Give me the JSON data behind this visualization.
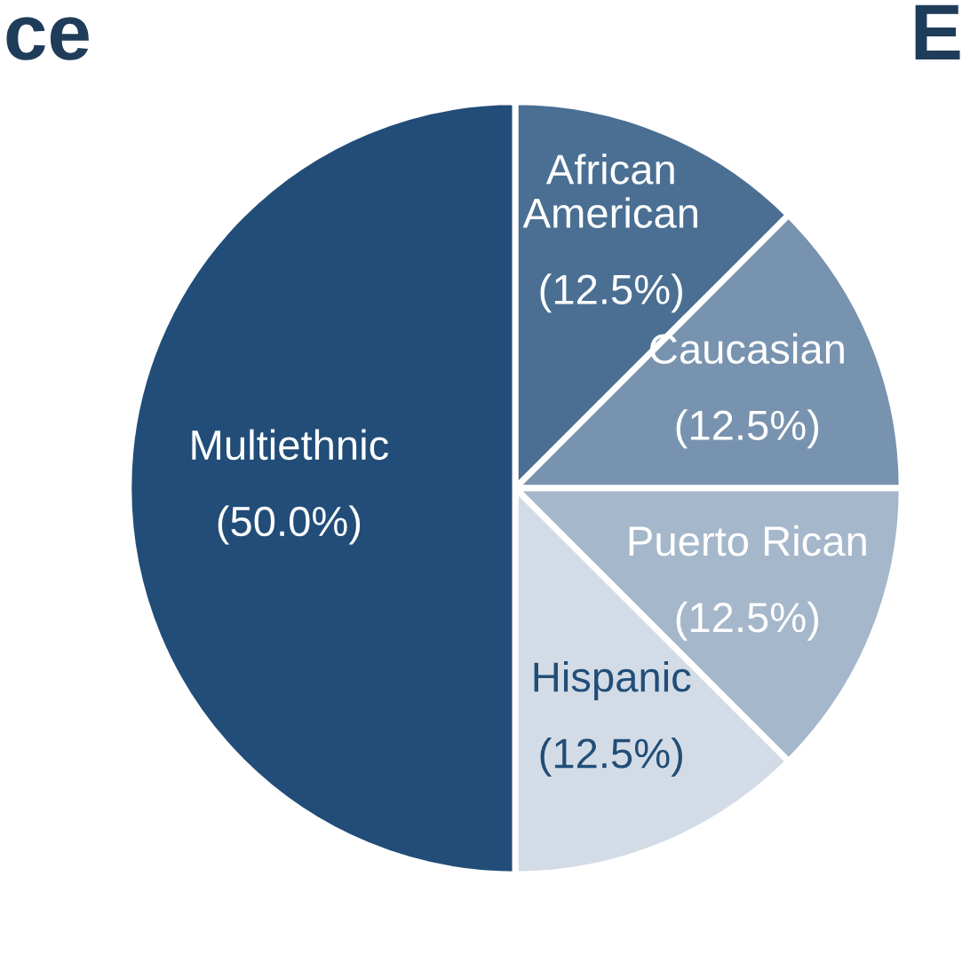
{
  "chart_data": {
    "type": "pie",
    "categories": [
      "African American",
      "Caucasian",
      "Puerto Rican",
      "Hispanic",
      "Multiethnic"
    ],
    "values": [
      12.5,
      12.5,
      12.5,
      12.5,
      50.0
    ],
    "value_labels": [
      "(12.5%)",
      "(12.5%)",
      "(12.5%)",
      "(12.5%)",
      "(50.0%)"
    ],
    "colors": [
      "#4a6f93",
      "#7893af",
      "#a5b7ca",
      "#d3dce6",
      "#214d78"
    ],
    "annotations": [
      "ce",
      "E"
    ],
    "legend": false
  }
}
